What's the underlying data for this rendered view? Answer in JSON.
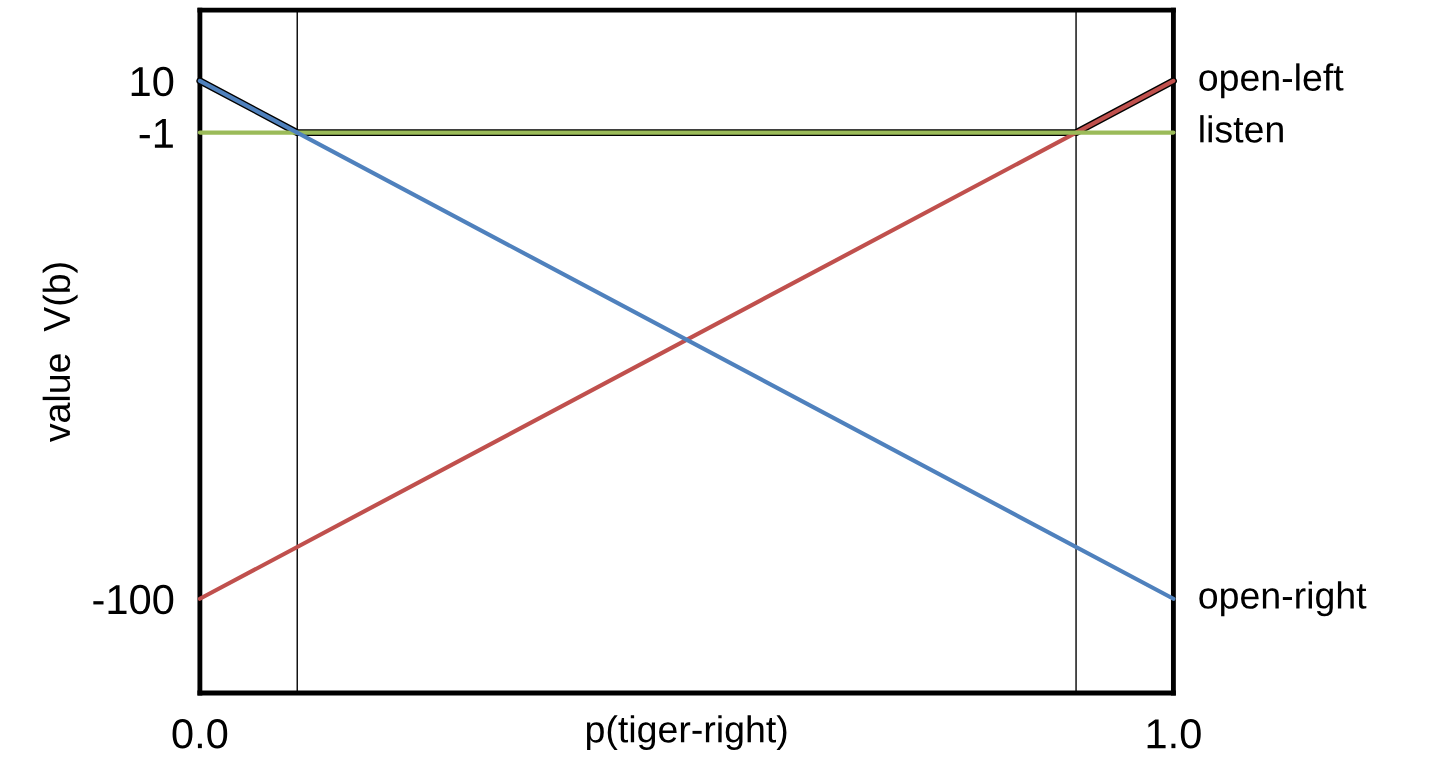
{
  "chart_data": {
    "type": "line",
    "xlabel": "p(tiger-right)",
    "ylabel": "value  V(b)",
    "xlim": [
      0,
      1
    ],
    "xticks": [
      {
        "value": 0,
        "label": "0.0"
      },
      {
        "value": 1,
        "label": "1.0"
      }
    ],
    "ylim": [
      -120,
      25
    ],
    "yticks": [
      10,
      -1,
      -100
    ],
    "grid": false,
    "marker": "none",
    "line_style": "solid",
    "series": [
      {
        "color": "#000000",
        "x": [
          0,
          0.1,
          0.9,
          1
        ],
        "values": [
          10,
          -1,
          -1,
          10
        ]
      },
      {
        "name": "open-left",
        "color": "#c0504d",
        "x": [
          0,
          1
        ],
        "values": [
          -100,
          10
        ]
      },
      {
        "name": "listen",
        "color": "#9bbb59",
        "x": [
          0,
          1
        ],
        "values": [
          -1,
          -1
        ]
      },
      {
        "name": "open-right",
        "color": "#4f81bd",
        "x": [
          0,
          1
        ],
        "values": [
          10,
          -100
        ]
      }
    ],
    "ref_lines": [
      {
        "axis": "x",
        "value": 0.1,
        "color": "#000000"
      },
      {
        "axis": "x",
        "value": 0.9,
        "color": "#000000"
      }
    ]
  }
}
